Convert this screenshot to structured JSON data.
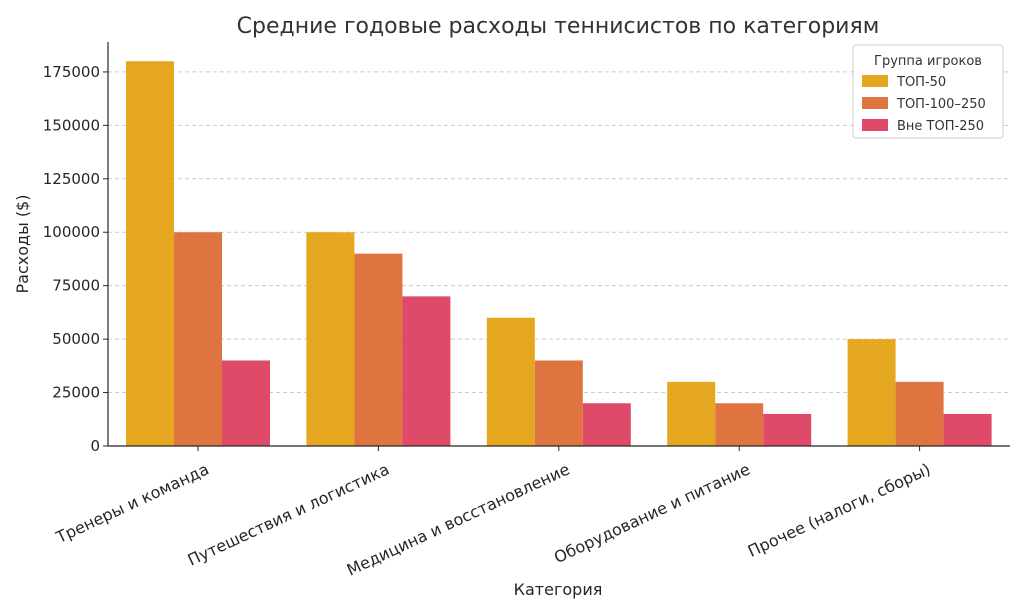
{
  "chart_data": {
    "type": "bar",
    "title": "Средние годовые расходы теннисистов по категориям",
    "xlabel": "Категория",
    "ylabel": "Расходы ($)",
    "categories": [
      "Тренеры и команда",
      "Путешествия и логистика",
      "Медицина и восстановление",
      "Оборудование и питание",
      "Прочее (налоги, сборы)"
    ],
    "series": [
      {
        "name": "ТОП-50",
        "color": "#e5a620",
        "values": [
          180000,
          100000,
          60000,
          30000,
          50000
        ]
      },
      {
        "name": "ТОП-100–250",
        "color": "#df7440",
        "values": [
          100000,
          90000,
          40000,
          20000,
          30000
        ]
      },
      {
        "name": "Вне ТОП-250",
        "color": "#df4a68",
        "values": [
          40000,
          70000,
          20000,
          15000,
          15000
        ]
      }
    ],
    "ylim": [
      0,
      189000
    ],
    "yticks": [
      0,
      25000,
      50000,
      75000,
      100000,
      125000,
      150000,
      175000
    ],
    "grid": true,
    "legend": {
      "title": "Группа игроков",
      "position": "top-right"
    }
  }
}
